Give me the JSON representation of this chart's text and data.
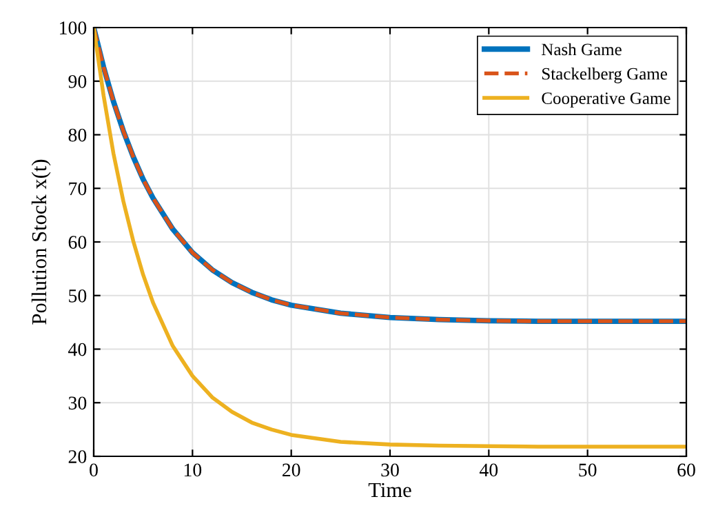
{
  "chart_data": {
    "type": "line",
    "xlabel": "Time",
    "ylabel": "Pollution Stock x(t)",
    "xlim": [
      0,
      60
    ],
    "ylim": [
      20,
      100
    ],
    "xticks": [
      0,
      10,
      20,
      30,
      40,
      50,
      60
    ],
    "yticks": [
      20,
      30,
      40,
      50,
      60,
      70,
      80,
      90,
      100
    ],
    "grid": true,
    "legend": "top right",
    "marker": "none",
    "x": [
      0,
      1,
      2,
      3,
      4,
      5,
      6,
      8,
      10,
      12,
      14,
      16,
      18,
      20,
      25,
      30,
      35,
      40,
      45,
      50,
      55,
      60
    ],
    "series": [
      {
        "name": "Nash Game",
        "color": "#0072bd",
        "line_style": "solid",
        "values": [
          100,
          92.6,
          86.2,
          80.7,
          75.9,
          71.7,
          68.2,
          62.4,
          58.0,
          54.8,
          52.4,
          50.6,
          49.2,
          48.2,
          46.7,
          45.9,
          45.5,
          45.3,
          45.2,
          45.2,
          45.2,
          45.2
        ]
      },
      {
        "name": "Stackelberg Game",
        "color": "#d95319",
        "line_style": "dashed",
        "values": [
          100,
          92.6,
          86.2,
          80.7,
          75.9,
          71.7,
          68.2,
          62.4,
          58.0,
          54.8,
          52.4,
          50.6,
          49.2,
          48.2,
          46.7,
          45.9,
          45.5,
          45.3,
          45.2,
          45.2,
          45.2,
          45.2
        ]
      },
      {
        "name": "Cooperative Game",
        "color": "#edb120",
        "line_style": "solid",
        "values": [
          100,
          87.3,
          76.5,
          67.6,
          60.2,
          53.9,
          48.7,
          40.6,
          35.0,
          31.0,
          28.3,
          26.3,
          25.0,
          24.0,
          22.7,
          22.2,
          22.0,
          21.9,
          21.8,
          21.8,
          21.8,
          21.8
        ]
      }
    ]
  }
}
